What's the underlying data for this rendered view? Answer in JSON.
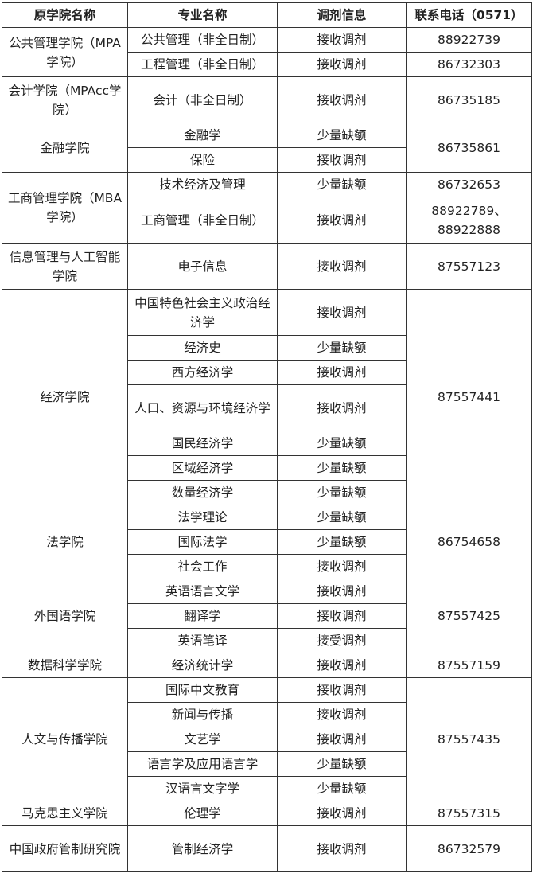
{
  "headers": [
    "原学院名称",
    "专业名称",
    "调剂信息",
    "联系电话（0571）"
  ],
  "groups": [
    {
      "college": "公共管理学院（MPA学院）",
      "majors": [
        {
          "name": "公共管理（非全日制）",
          "status": "接收调剂",
          "phone": "88922739"
        },
        {
          "name": "工程管理（非全日制）",
          "status": "接收调剂",
          "phone": "86732303"
        }
      ]
    },
    {
      "college": "会计学院（MPAcc学院）",
      "phone": "86735185",
      "majors": [
        {
          "name": "会计（非全日制）",
          "status": "接收调剂",
          "tall": true
        }
      ]
    },
    {
      "college": "金融学院",
      "phone": "86735861",
      "majors": [
        {
          "name": "金融学",
          "status": "少量缺额"
        },
        {
          "name": "保险",
          "status": "接收调剂"
        }
      ]
    },
    {
      "college": "工商管理学院（MBA学院）",
      "majors": [
        {
          "name": "技术经济及管理",
          "status": "少量缺额",
          "phone": "86732653"
        },
        {
          "name": "工商管理（非全日制）",
          "status": "接收调剂",
          "phone": "88922789、88922888",
          "tall": true
        }
      ]
    },
    {
      "college": "信息管理与人工智能学院",
      "phone": "87557123",
      "majors": [
        {
          "name": "电子信息",
          "status": "接收调剂",
          "tall": true
        }
      ]
    },
    {
      "college": "经济学院",
      "phone": "87557441",
      "majors": [
        {
          "name": "中国特色社会主义政治经济学",
          "status": "接收调剂",
          "tall": true
        },
        {
          "name": "经济史",
          "status": "少量缺额"
        },
        {
          "name": "西方经济学",
          "status": "接收调剂"
        },
        {
          "name": "人口、资源与环境经济学",
          "status": "接收调剂",
          "tall": true
        },
        {
          "name": "国民经济学",
          "status": "少量缺额"
        },
        {
          "name": "区域经济学",
          "status": "少量缺额"
        },
        {
          "name": "数量经济学",
          "status": "少量缺额"
        }
      ]
    },
    {
      "college": "法学院",
      "phone": "86754658",
      "majors": [
        {
          "name": "法学理论",
          "status": "少量缺额"
        },
        {
          "name": "国际法学",
          "status": "少量缺额"
        },
        {
          "name": "社会工作",
          "status": "接收调剂"
        }
      ]
    },
    {
      "college": "外国语学院",
      "phone": "87557425",
      "majors": [
        {
          "name": "英语语言文学",
          "status": "接收调剂"
        },
        {
          "name": "翻译学",
          "status": "接收调剂"
        },
        {
          "name": "英语笔译",
          "status": "接受调剂"
        }
      ]
    },
    {
      "college": "数据科学学院",
      "phone": "87557159",
      "majors": [
        {
          "name": "经济统计学",
          "status": "接收调剂"
        }
      ]
    },
    {
      "college": "人文与传播学院",
      "phone": "87557435",
      "majors": [
        {
          "name": "国际中文教育",
          "status": "接收调剂"
        },
        {
          "name": "新闻与传播",
          "status": "接收调剂"
        },
        {
          "name": "文艺学",
          "status": "接收调剂"
        },
        {
          "name": "语言学及应用语言学",
          "status": "少量缺额"
        },
        {
          "name": "汉语言文字学",
          "status": "少量缺额"
        }
      ]
    },
    {
      "college": "马克思主义学院",
      "phone": "87557315",
      "majors": [
        {
          "name": "伦理学",
          "status": "接收调剂"
        }
      ]
    },
    {
      "college": "中国政府管制研究院",
      "phone": "86732579",
      "majors": [
        {
          "name": "管制经济学",
          "status": "接收调剂",
          "tall": true
        }
      ]
    }
  ]
}
